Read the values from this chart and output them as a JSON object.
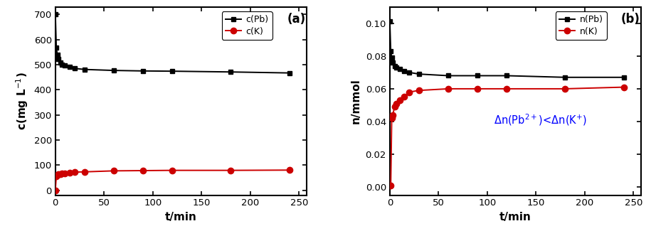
{
  "panel_a": {
    "pb_t": [
      0,
      1,
      2,
      3,
      5,
      7,
      10,
      15,
      20,
      30,
      60,
      90,
      120,
      180,
      240
    ],
    "pb_c": [
      700,
      568,
      540,
      522,
      508,
      500,
      496,
      491,
      485,
      481,
      477,
      475,
      474,
      471,
      467
    ],
    "k_t": [
      0,
      1,
      2,
      3,
      5,
      7,
      10,
      15,
      20,
      30,
      60,
      90,
      120,
      180,
      240
    ],
    "k_c": [
      0,
      56,
      60,
      63,
      65,
      67,
      68,
      70,
      72,
      73,
      77,
      78,
      79,
      79,
      80
    ],
    "xlabel": "t/min",
    "ylabel": "c(mg L$^{-1}$)",
    "label_a": "(a)",
    "legend_pb": "c(Pb)",
    "legend_k": "c(K)",
    "xlim": [
      0,
      258
    ],
    "ylim": [
      -20,
      730
    ],
    "yticks": [
      0,
      100,
      200,
      300,
      400,
      500,
      600,
      700
    ],
    "xticks": [
      0,
      50,
      100,
      150,
      200,
      250
    ]
  },
  "panel_b": {
    "pb_t": [
      0,
      1,
      2,
      3,
      5,
      7,
      10,
      15,
      20,
      30,
      60,
      90,
      120,
      180,
      240
    ],
    "pb_n": [
      0.101,
      0.083,
      0.079,
      0.076,
      0.074,
      0.073,
      0.072,
      0.071,
      0.07,
      0.069,
      0.068,
      0.068,
      0.068,
      0.067,
      0.067
    ],
    "k_t": [
      0,
      1,
      2,
      3,
      5,
      7,
      10,
      15,
      20,
      30,
      60,
      90,
      120,
      180,
      240
    ],
    "k_n": [
      0.001,
      0.001,
      0.042,
      0.044,
      0.049,
      0.051,
      0.053,
      0.055,
      0.058,
      0.059,
      0.06,
      0.06,
      0.06,
      0.06,
      0.061
    ],
    "xlabel": "t/min",
    "ylabel": "n/mmol",
    "label_b": "(b)",
    "legend_pb": "n(Pb)",
    "legend_k": "n(K)",
    "annotation": "Δn(Pb$^{2+}$)<Δn(K$^{+}$)",
    "xlim": [
      0,
      258
    ],
    "ylim": [
      -0.005,
      0.11
    ],
    "yticks": [
      0.0,
      0.02,
      0.04,
      0.06,
      0.08,
      0.1
    ],
    "xticks": [
      0,
      50,
      100,
      150,
      200,
      250
    ]
  },
  "pb_color": "#000000",
  "k_color": "#cc0000",
  "bg_color": "#ffffff",
  "linewidth": 1.4,
  "markersize_sq": 5,
  "markersize_ci": 6,
  "spine_lw": 1.5
}
